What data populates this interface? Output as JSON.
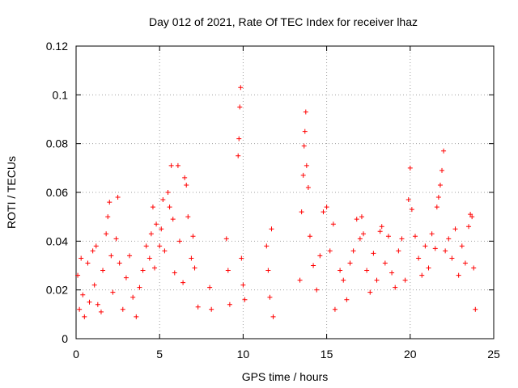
{
  "chart_data": {
    "type": "scatter",
    "title": "Day 012 of 2021, Rate Of TEC Index for receiver lhaz",
    "xlabel": "GPS time / hours",
    "ylabel": "ROTI / TECUs",
    "xlim": [
      0,
      25
    ],
    "ylim": [
      0,
      0.12
    ],
    "xticks": [
      "0",
      "5",
      "10",
      "15",
      "20",
      "25"
    ],
    "yticks": [
      "0",
      "0.02",
      "0.04",
      "0.06",
      "0.08",
      "0.1",
      "0.12"
    ],
    "grid": true,
    "marker": "+",
    "color": "#ff0000",
    "series": [
      {
        "values": [
          [
            0.1,
            0.026
          ],
          [
            0.2,
            0.012
          ],
          [
            0.3,
            0.033
          ],
          [
            0.4,
            0.018
          ],
          [
            0.5,
            0.009
          ],
          [
            0.7,
            0.031
          ],
          [
            0.8,
            0.015
          ],
          [
            1.0,
            0.036
          ],
          [
            1.1,
            0.022
          ],
          [
            1.2,
            0.038
          ],
          [
            1.3,
            0.014
          ],
          [
            1.5,
            0.011
          ],
          [
            1.6,
            0.028
          ],
          [
            1.8,
            0.043
          ],
          [
            1.9,
            0.05
          ],
          [
            2.0,
            0.056
          ],
          [
            2.1,
            0.034
          ],
          [
            2.2,
            0.019
          ],
          [
            2.4,
            0.041
          ],
          [
            2.5,
            0.058
          ],
          [
            2.6,
            0.031
          ],
          [
            2.8,
            0.012
          ],
          [
            3.0,
            0.025
          ],
          [
            3.2,
            0.034
          ],
          [
            3.4,
            0.017
          ],
          [
            3.6,
            0.009
          ],
          [
            3.8,
            0.021
          ],
          [
            4.0,
            0.028
          ],
          [
            4.2,
            0.038
          ],
          [
            4.4,
            0.033
          ],
          [
            4.5,
            0.043
          ],
          [
            4.6,
            0.054
          ],
          [
            4.7,
            0.029
          ],
          [
            4.8,
            0.047
          ],
          [
            5.0,
            0.038
          ],
          [
            5.1,
            0.045
          ],
          [
            5.2,
            0.057
          ],
          [
            5.3,
            0.036
          ],
          [
            5.5,
            0.06
          ],
          [
            5.6,
            0.054
          ],
          [
            5.7,
            0.071
          ],
          [
            5.8,
            0.049
          ],
          [
            5.9,
            0.027
          ],
          [
            6.1,
            0.071
          ],
          [
            6.2,
            0.04
          ],
          [
            6.4,
            0.023
          ],
          [
            6.5,
            0.066
          ],
          [
            6.6,
            0.063
          ],
          [
            6.7,
            0.05
          ],
          [
            6.9,
            0.033
          ],
          [
            7.0,
            0.042
          ],
          [
            7.1,
            0.029
          ],
          [
            7.3,
            0.013
          ],
          [
            8.0,
            0.021
          ],
          [
            8.1,
            0.012
          ],
          [
            9.0,
            0.041
          ],
          [
            9.1,
            0.028
          ],
          [
            9.2,
            0.014
          ],
          [
            9.7,
            0.075
          ],
          [
            9.75,
            0.082
          ],
          [
            9.8,
            0.095
          ],
          [
            9.85,
            0.103
          ],
          [
            9.9,
            0.033
          ],
          [
            10.0,
            0.022
          ],
          [
            10.1,
            0.016
          ],
          [
            11.4,
            0.038
          ],
          [
            11.5,
            0.028
          ],
          [
            11.6,
            0.017
          ],
          [
            11.7,
            0.045
          ],
          [
            11.8,
            0.009
          ],
          [
            13.4,
            0.024
          ],
          [
            13.5,
            0.052
          ],
          [
            13.6,
            0.067
          ],
          [
            13.65,
            0.079
          ],
          [
            13.7,
            0.085
          ],
          [
            13.75,
            0.093
          ],
          [
            13.8,
            0.071
          ],
          [
            13.9,
            0.062
          ],
          [
            14.0,
            0.042
          ],
          [
            14.2,
            0.03
          ],
          [
            14.4,
            0.02
          ],
          [
            14.6,
            0.034
          ],
          [
            14.8,
            0.052
          ],
          [
            15.0,
            0.054
          ],
          [
            15.2,
            0.036
          ],
          [
            15.4,
            0.047
          ],
          [
            15.5,
            0.012
          ],
          [
            15.8,
            0.028
          ],
          [
            16.0,
            0.024
          ],
          [
            16.2,
            0.016
          ],
          [
            16.4,
            0.031
          ],
          [
            16.6,
            0.036
          ],
          [
            16.8,
            0.049
          ],
          [
            17.0,
            0.041
          ],
          [
            17.1,
            0.05
          ],
          [
            17.2,
            0.043
          ],
          [
            17.4,
            0.028
          ],
          [
            17.6,
            0.019
          ],
          [
            17.8,
            0.035
          ],
          [
            18.0,
            0.024
          ],
          [
            18.2,
            0.044
          ],
          [
            18.3,
            0.046
          ],
          [
            18.5,
            0.031
          ],
          [
            18.7,
            0.042
          ],
          [
            18.9,
            0.027
          ],
          [
            19.1,
            0.021
          ],
          [
            19.3,
            0.036
          ],
          [
            19.5,
            0.041
          ],
          [
            19.7,
            0.024
          ],
          [
            19.9,
            0.057
          ],
          [
            20.0,
            0.07
          ],
          [
            20.1,
            0.053
          ],
          [
            20.3,
            0.042
          ],
          [
            20.5,
            0.033
          ],
          [
            20.7,
            0.026
          ],
          [
            20.9,
            0.038
          ],
          [
            21.1,
            0.029
          ],
          [
            21.3,
            0.043
          ],
          [
            21.5,
            0.037
          ],
          [
            21.6,
            0.054
          ],
          [
            21.7,
            0.058
          ],
          [
            21.8,
            0.063
          ],
          [
            21.9,
            0.069
          ],
          [
            22.0,
            0.077
          ],
          [
            22.1,
            0.036
          ],
          [
            22.3,
            0.041
          ],
          [
            22.5,
            0.033
          ],
          [
            22.7,
            0.045
          ],
          [
            22.9,
            0.026
          ],
          [
            23.1,
            0.038
          ],
          [
            23.3,
            0.031
          ],
          [
            23.5,
            0.046
          ],
          [
            23.6,
            0.051
          ],
          [
            23.7,
            0.05
          ],
          [
            23.8,
            0.029
          ],
          [
            23.9,
            0.012
          ]
        ]
      }
    ]
  }
}
